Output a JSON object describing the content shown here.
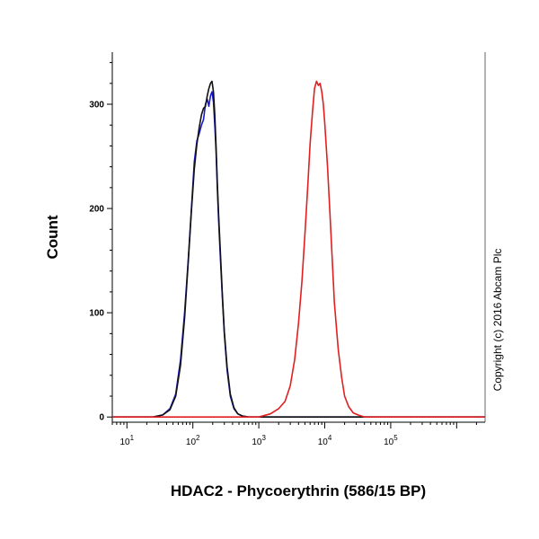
{
  "chart_data": {
    "type": "line",
    "title": "",
    "xlabel": "HDAC2 - Phycoerythrin (586/15 BP)",
    "ylabel": "Count",
    "x_scale": "log",
    "xlim": [
      6,
      2700000
    ],
    "ylim": [
      -5,
      350
    ],
    "x_ticks": [
      {
        "base": "10",
        "exp": "1",
        "value": 10
      },
      {
        "base": "10",
        "exp": "2",
        "value": 100
      },
      {
        "base": "10",
        "exp": "3",
        "value": 1000
      },
      {
        "base": "10",
        "exp": "4",
        "value": 10000
      },
      {
        "base": "10",
        "exp": "5",
        "value": 100000
      }
    ],
    "y_ticks": [
      "0",
      "100",
      "200",
      "300"
    ],
    "y_tick_values": [
      0,
      100,
      200,
      300
    ],
    "grid": false,
    "legend": "none",
    "series": [
      {
        "color": "#1a1acc",
        "x": [
          6,
          25,
          35,
          45,
          55,
          65,
          75,
          85,
          95,
          105,
          115,
          125,
          135,
          145,
          155,
          165,
          175,
          185,
          195,
          205,
          215,
          225,
          235,
          245,
          260,
          280,
          300,
          330,
          370,
          420,
          480,
          560,
          700,
          1000,
          2700000
        ],
        "y": [
          0,
          0,
          2,
          8,
          22,
          55,
          100,
          150,
          200,
          245,
          265,
          272,
          280,
          285,
          300,
          305,
          298,
          308,
          312,
          302,
          280,
          255,
          220,
          190,
          155,
          115,
          80,
          45,
          20,
          8,
          3,
          1,
          0,
          0,
          0
        ]
      },
      {
        "color": "#111111",
        "x": [
          6,
          25,
          35,
          45,
          55,
          65,
          75,
          85,
          95,
          105,
          115,
          125,
          135,
          145,
          155,
          165,
          175,
          185,
          195,
          205,
          215,
          225,
          235,
          245,
          260,
          280,
          300,
          330,
          370,
          420,
          480,
          560,
          700,
          1000,
          2700000
        ],
        "y": [
          0,
          0,
          2,
          7,
          20,
          50,
          95,
          148,
          198,
          238,
          262,
          278,
          290,
          296,
          298,
          308,
          315,
          320,
          322,
          312,
          290,
          260,
          225,
          195,
          160,
          118,
          82,
          48,
          22,
          9,
          3,
          1,
          0,
          0,
          0
        ]
      },
      {
        "color": "#e02020",
        "x": [
          6,
          1000,
          1500,
          2000,
          2500,
          3000,
          3500,
          4000,
          4500,
          5000,
          5500,
          6000,
          6500,
          7000,
          7500,
          8000,
          8500,
          9000,
          9500,
          10000,
          11000,
          12000,
          13000,
          14000,
          16000,
          18000,
          20000,
          23000,
          27000,
          32000,
          40000,
          50000,
          2700000
        ],
        "y": [
          0,
          0,
          3,
          8,
          15,
          30,
          55,
          90,
          130,
          175,
          220,
          262,
          292,
          315,
          322,
          318,
          320,
          312,
          300,
          282,
          240,
          195,
          150,
          110,
          65,
          38,
          20,
          10,
          4,
          2,
          0,
          0,
          0
        ]
      }
    ]
  },
  "copyright": "Copyright (c) 2016 Abcam Plc"
}
